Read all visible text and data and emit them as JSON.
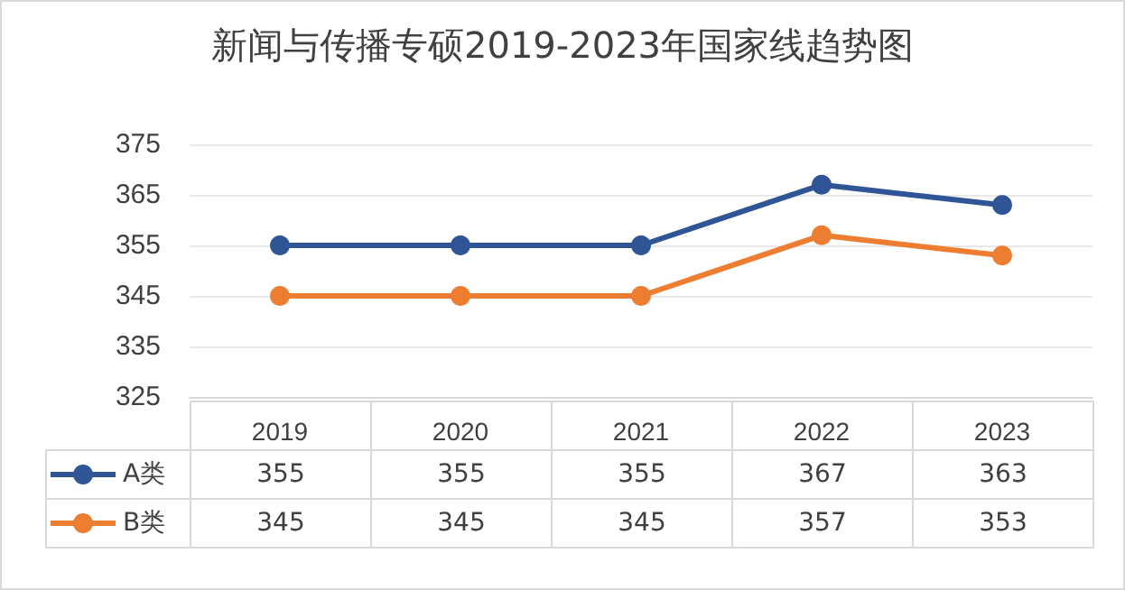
{
  "chart_data": {
    "type": "line",
    "title": "新闻与传播专硕2019-2023年国家线趋势图",
    "categories": [
      "2019",
      "2020",
      "2021",
      "2022",
      "2023"
    ],
    "series": [
      {
        "name": "A类",
        "color": "#2f5597",
        "values": [
          355,
          355,
          355,
          367,
          363
        ]
      },
      {
        "name": "B类",
        "color": "#ed7d31",
        "values": [
          345,
          345,
          345,
          357,
          353
        ]
      }
    ],
    "ylim": [
      325,
      375
    ],
    "yticks": [
      325,
      335,
      345,
      355,
      365,
      375
    ],
    "grid": "y",
    "marker": "circle",
    "data_labels": true,
    "legend": "bottom"
  }
}
